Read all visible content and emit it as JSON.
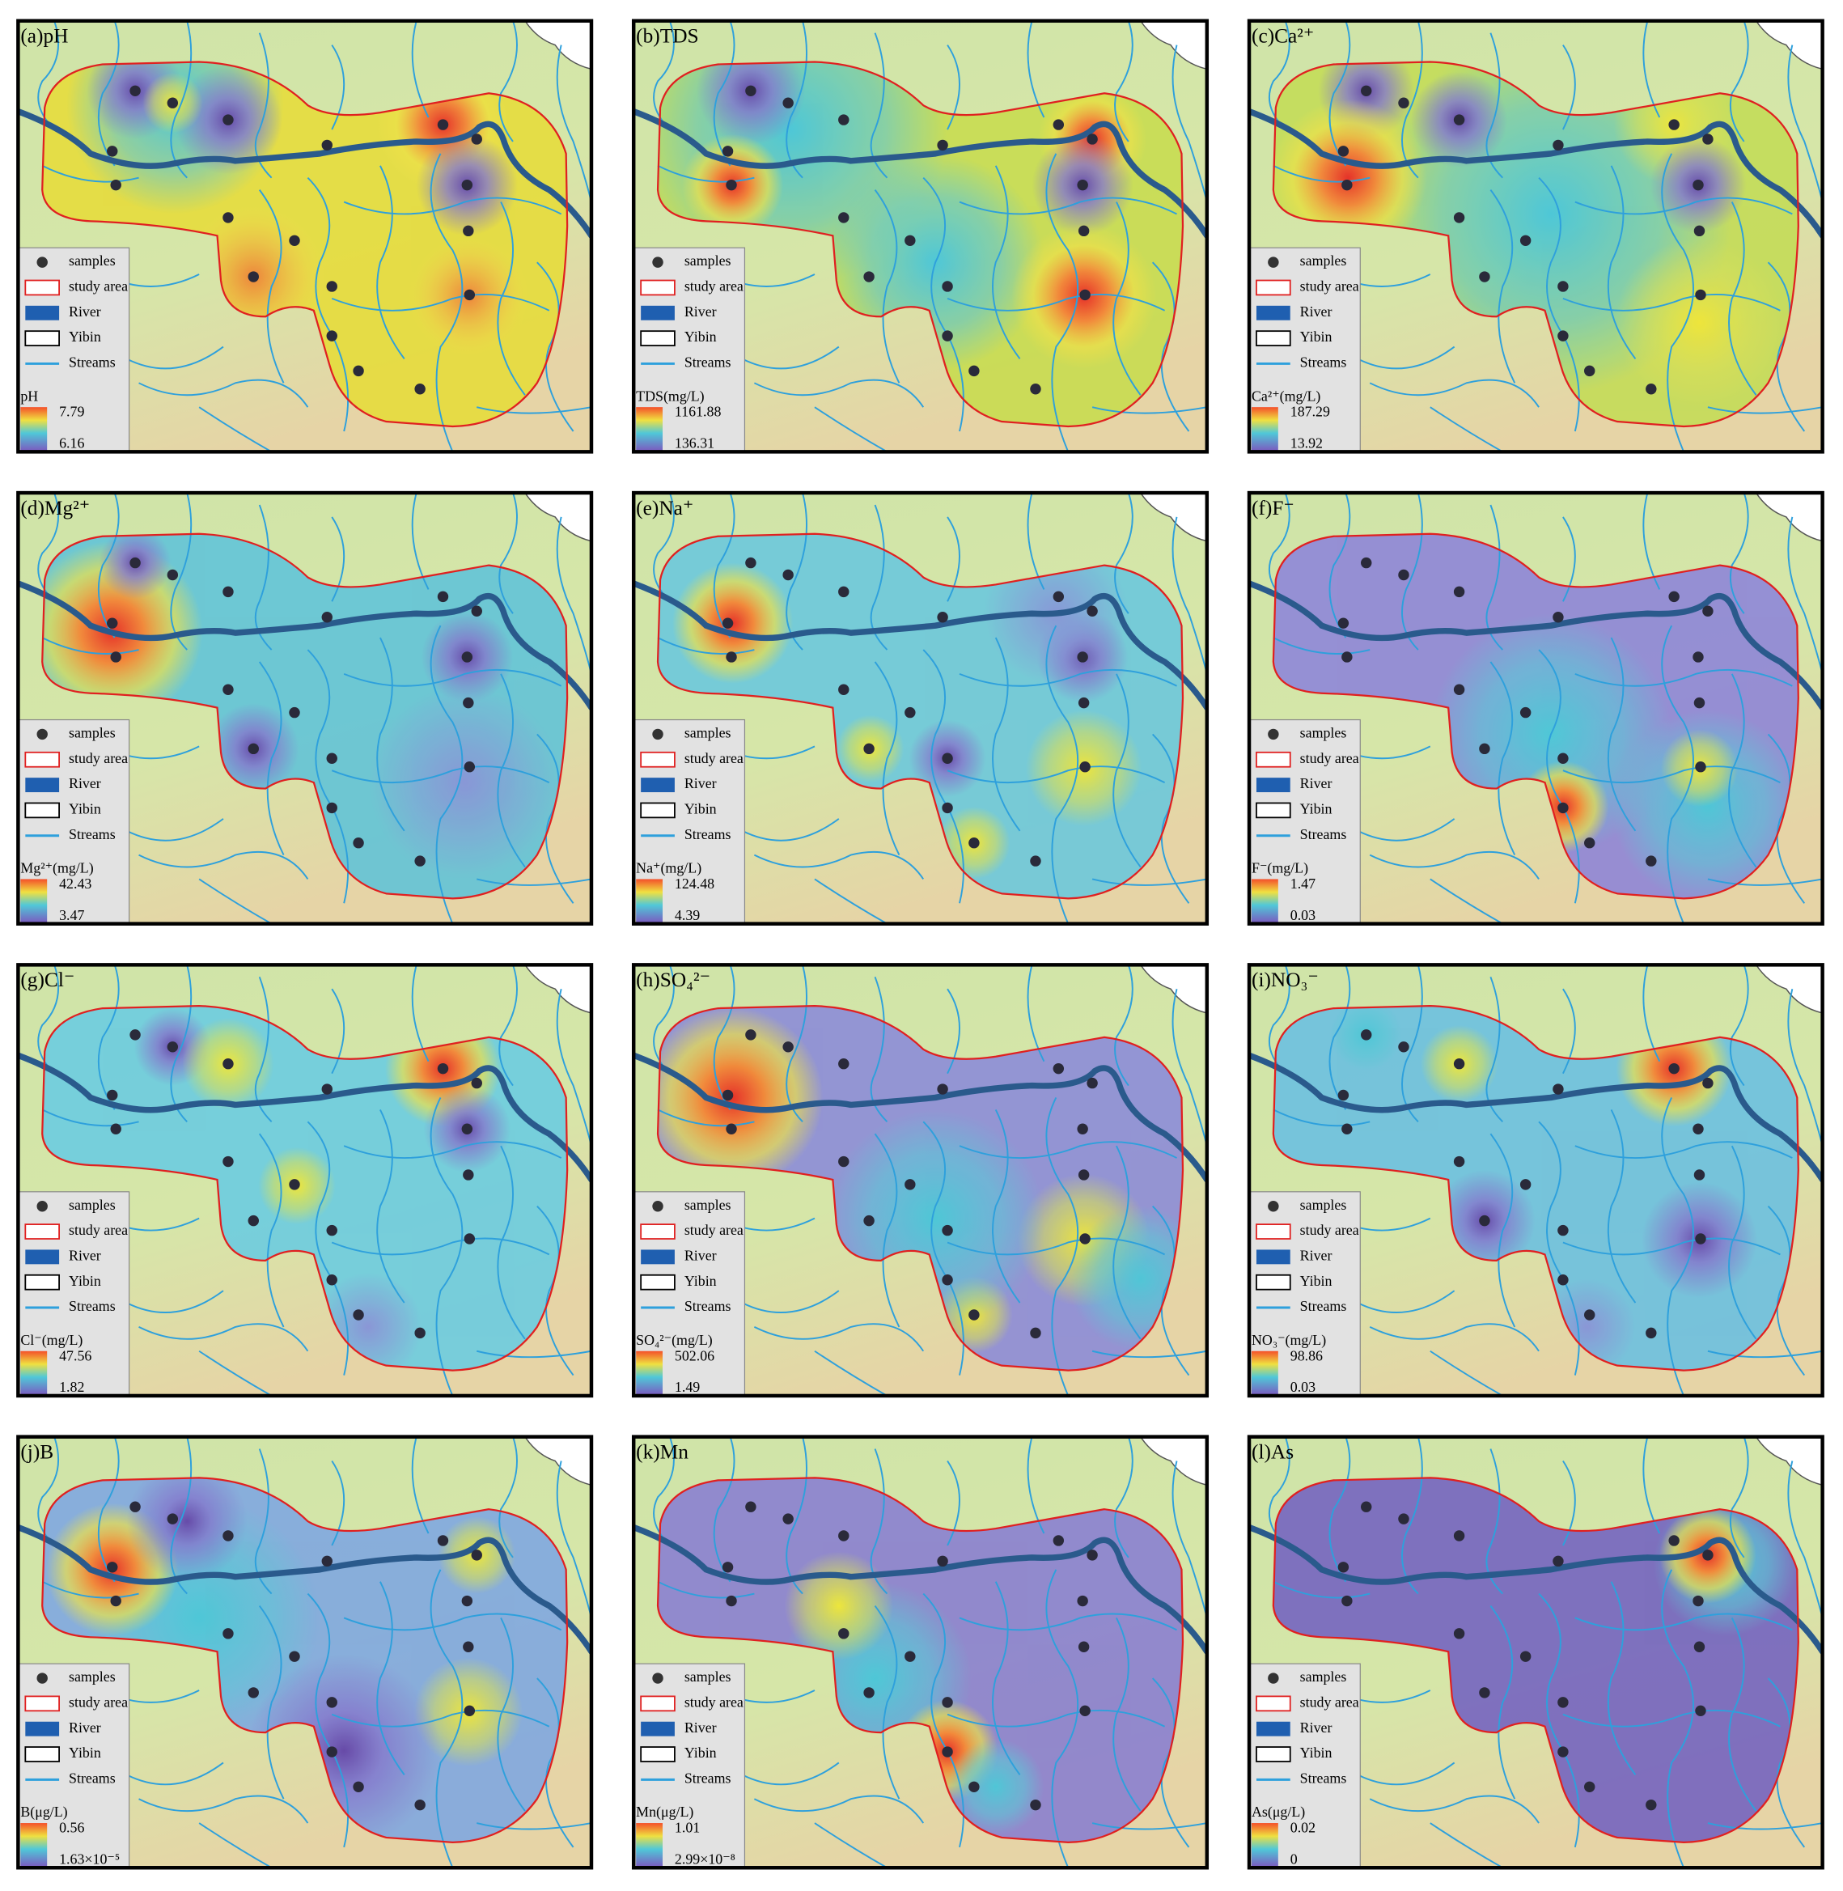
{
  "legend": [
    "samples",
    "study area",
    "River",
    "Yibin",
    "Streams"
  ],
  "panels": [
    {
      "title": "(a)pH",
      "scale_title": "pH",
      "max": 7.79,
      "min": 6.16
    },
    {
      "title": "(b)TDS",
      "scale_title": "TDS(mg/L)",
      "max": 1161.88,
      "min": 136.31
    },
    {
      "title": "(c)Ca²⁺",
      "scale_title": "Ca²⁺(mg/L)",
      "max": 187.29,
      "min": 13.92
    },
    {
      "title": "(d)Mg²⁺",
      "scale_title": "Mg²⁺(mg/L)",
      "max": 42.43,
      "min": 3.47
    },
    {
      "title": "(e)Na⁺",
      "scale_title": "Na⁺(mg/L)",
      "max": 124.48,
      "min": 4.39
    },
    {
      "title": "(f)F⁻",
      "scale_title": "F⁻(mg/L)",
      "max": 1.47,
      "min": 0.03
    },
    {
      "title": "(g)Cl⁻",
      "scale_title": "Cl⁻(mg/L)",
      "max": 47.56,
      "min": 1.82
    },
    {
      "title": "(h)SO₄²⁻",
      "scale_title": "SO₄²⁻(mg/L)",
      "max": 502.06,
      "min": 1.49
    },
    {
      "title": "(i)NO₃⁻",
      "scale_title": "NO₃⁻(mg/L)",
      "max": 98.86,
      "min": 0.03
    },
    {
      "title": "(j)B",
      "scale_title": "B(μg/L)",
      "max": 0.56,
      "min": {
        "value": 1.63e-05,
        "label": "1.63×10⁻⁵"
      }
    },
    {
      "title": "(k)Mn",
      "scale_title": "Mn(μg/L)",
      "max": 1.01,
      "min": {
        "value": 2.99e-08,
        "label": "2.99×10⁻⁸"
      }
    },
    {
      "title": "(l)As",
      "scale_title": "As(μg/L)",
      "max": 0.02,
      "min": 0
    }
  ]
}
